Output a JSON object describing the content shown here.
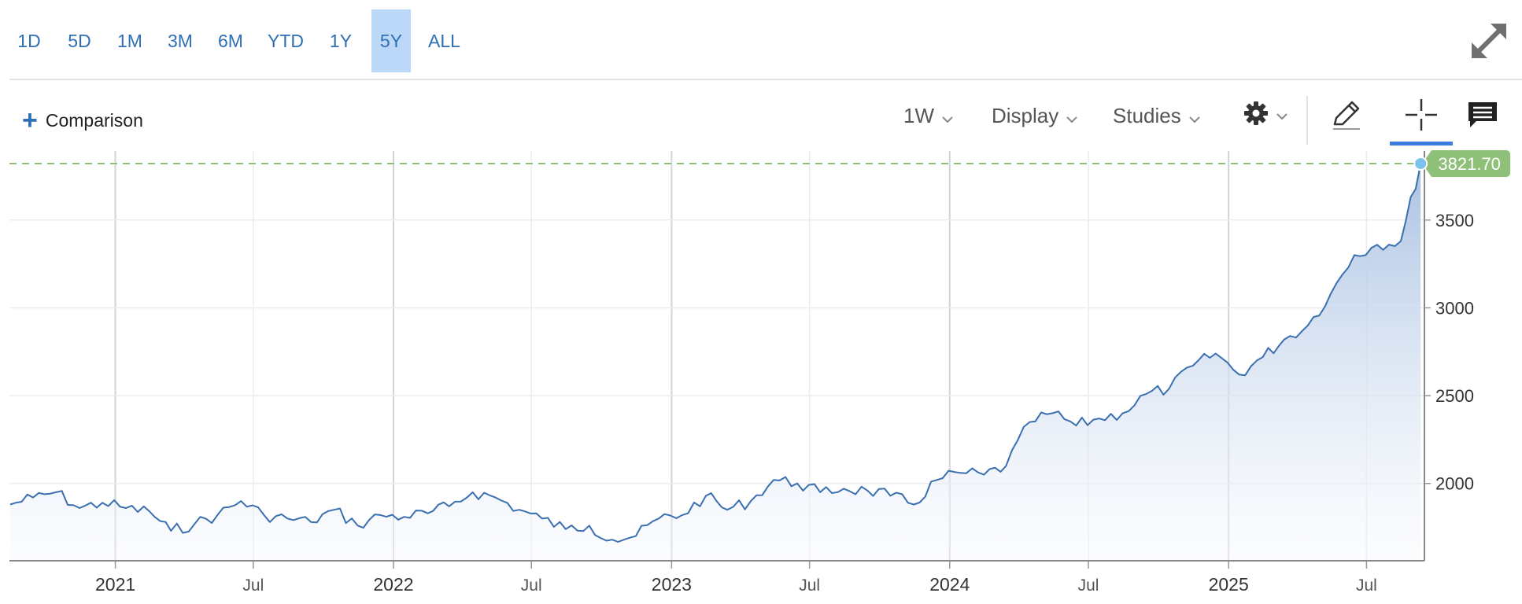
{
  "toolbar": {
    "ranges": [
      "1D",
      "5D",
      "1M",
      "3M",
      "6M",
      "YTD",
      "1Y",
      "5Y",
      "ALL"
    ],
    "active_range": "5Y",
    "comparison_label": "Comparison",
    "interval_label": "1W",
    "display_label": "Display",
    "studies_label": "Studies",
    "icons": [
      "expand-icon",
      "plus-icon",
      "gear-icon",
      "pencil-icon",
      "crosshair-icon",
      "comment-icon",
      "chevron-down-icon"
    ]
  },
  "colors": {
    "accent": "#2e6fb5",
    "line": "#3a6fb0",
    "fill_top": "#a9c1e2",
    "last_price_badge": "#8fc07a",
    "active_range_bg": "#bcd8f8"
  },
  "chart_data": {
    "type": "area",
    "title": "",
    "xlabel": "",
    "ylabel": "",
    "x_ticks": [
      "2021",
      "Jul",
      "2022",
      "Jul",
      "2023",
      "Jul",
      "2024",
      "Jul",
      "2025",
      "Jul"
    ],
    "x_tick_dates": [
      "2021-01-01",
      "2021-07-01",
      "2022-01-01",
      "2022-07-01",
      "2023-01-01",
      "2023-07-01",
      "2024-01-01",
      "2024-07-01",
      "2025-01-01",
      "2025-07-01"
    ],
    "y_ticks": [
      2000,
      2500,
      3000,
      3500
    ],
    "xlim": [
      "2020-08-15",
      "2025-09-15"
    ],
    "ylim": [
      1560,
      3920
    ],
    "y_axis_side": "right",
    "grid": true,
    "last_price": 3821.7,
    "last_price_label": "3821.70",
    "series": [
      {
        "x": [
          "2020-08-16",
          "2020-09-15",
          "2020-10-15",
          "2020-11-15",
          "2020-12-15",
          "2021-01-15",
          "2021-02-15",
          "2021-03-15",
          "2021-04-15",
          "2021-05-15",
          "2021-06-15",
          "2021-07-15",
          "2021-08-15",
          "2021-09-15",
          "2021-10-15",
          "2021-11-15",
          "2021-12-15",
          "2022-01-15",
          "2022-02-15",
          "2022-03-15",
          "2022-04-15",
          "2022-05-15",
          "2022-06-15",
          "2022-07-15",
          "2022-08-15",
          "2022-09-15",
          "2022-10-15",
          "2022-11-15",
          "2022-12-15",
          "2023-01-15",
          "2023-02-15",
          "2023-03-15",
          "2023-04-15",
          "2023-05-15",
          "2023-06-15",
          "2023-07-15",
          "2023-08-15",
          "2023-09-15",
          "2023-10-15",
          "2023-11-15",
          "2023-12-15",
          "2024-01-15",
          "2024-02-15",
          "2024-03-15",
          "2024-04-15",
          "2024-05-15",
          "2024-06-15",
          "2024-07-15",
          "2024-08-15",
          "2024-09-15",
          "2024-10-15",
          "2024-11-15",
          "2024-12-15",
          "2025-01-15",
          "2025-02-15",
          "2025-03-15",
          "2025-04-15",
          "2025-05-15",
          "2025-06-15",
          "2025-07-15",
          "2025-08-15",
          "2025-09-10"
        ],
        "y": [
          1880,
          1920,
          1950,
          1860,
          1890,
          1860,
          1840,
          1730,
          1770,
          1820,
          1900,
          1820,
          1800,
          1780,
          1850,
          1760,
          1820,
          1810,
          1830,
          1870,
          1950,
          1920,
          1850,
          1800,
          1740,
          1760,
          1680,
          1700,
          1800,
          1820,
          1930,
          1850,
          1900,
          2020,
          2000,
          1950,
          1970,
          1960,
          1930,
          1880,
          2020,
          2060,
          2050,
          2100,
          2350,
          2400,
          2330,
          2370,
          2400,
          2510,
          2540,
          2670,
          2740,
          2620,
          2720,
          2820,
          2900,
          3080,
          3300,
          3360,
          3380,
          3821.7
        ]
      }
    ]
  }
}
